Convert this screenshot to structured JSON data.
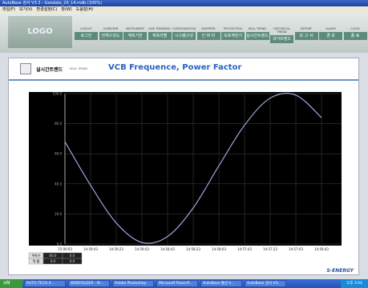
{
  "window": {
    "title": "AutoBase 검사 V3.3 - Geodate_20_14.mdb (100%)",
    "menu": [
      "파일(F)",
      "보기(V)",
      "환경설정(C)",
      "창(W)",
      "도움말(H)"
    ]
  },
  "nav": {
    "logo": "LOGO",
    "buttons": [
      {
        "en": "LOGOUT",
        "ko": "로그인"
      },
      {
        "en": "OVERVIEW",
        "ko": "전체구성도"
      },
      {
        "en": "INSTRUMENT",
        "ko": "계측기반"
      },
      {
        "en": "LINE TRENDING",
        "ko": "계측라벨"
      },
      {
        "en": "CONFIGURATION",
        "ko": "시스템구성"
      },
      {
        "en": "INVERTER",
        "ko": "인 버 터"
      },
      {
        "en": "PROTECTION",
        "ko": "보호계전기"
      },
      {
        "en": "REAL TREND",
        "ko": "실시간트렌드"
      },
      {
        "en": "HISTORICAL TREND",
        "ko": "과거트렌드"
      },
      {
        "en": "REPORT",
        "ko": "보 고 서"
      },
      {
        "en": "ALARM",
        "ko": "경 보"
      },
      {
        "en": "CLOSE",
        "ko": "종 료"
      }
    ]
  },
  "header": {
    "section": "실시간트렌드",
    "section_en": "REAL TREND",
    "title": "VCB Frequence, Power Factor"
  },
  "chart_data": {
    "type": "line",
    "categories": [
      "15:00:03",
      "14:59:43",
      "14:59:23",
      "14:59:03",
      "14:58:43",
      "14:58:23",
      "14:58:03",
      "14:57:43",
      "14:57:23",
      "14:57:03",
      "14:56:43"
    ],
    "series": [
      {
        "name": "주파수",
        "color": "#9aa6d8",
        "values": [
          68,
          39,
          14,
          1,
          5,
          24,
          52,
          79,
          97,
          99,
          84
        ]
      }
    ],
    "ylim": [
      0,
      100
    ],
    "yticks": [
      {
        "value": 0,
        "label": "0.0"
      },
      {
        "value": 20,
        "label": "20.0"
      },
      {
        "value": 40,
        "label": "40.0"
      },
      {
        "value": 60,
        "label": "60.0"
      },
      {
        "value": 80,
        "label": "80.0"
      },
      {
        "value": 100,
        "label": "100.0"
      }
    ],
    "grid": true
  },
  "legend_table": {
    "rows": [
      [
        "주파수",
        "60.0",
        "0.0"
      ],
      [
        "역 률",
        "0.0",
        "0.0"
      ]
    ]
  },
  "footer": {
    "brand": "S-ENERGY"
  },
  "taskbar": {
    "start": "시작",
    "items": [
      "AUTO TECH 4...",
      "WEBFOLDER - M...",
      "Adobe Photoshop",
      "Microsoft PowerP...",
      "AutoBase 통신 S...",
      "AutoBase 검사 V3..."
    ],
    "clock": "오후 3:04"
  }
}
